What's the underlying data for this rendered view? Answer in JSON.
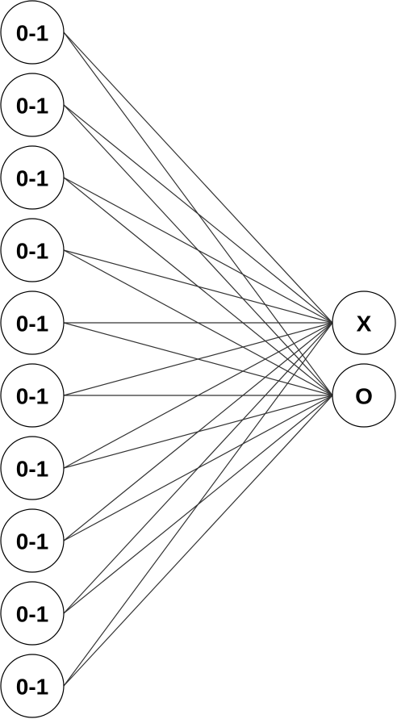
{
  "diagram": {
    "type": "neural-network",
    "input_nodes": [
      {
        "label": "0-1"
      },
      {
        "label": "0-1"
      },
      {
        "label": "0-1"
      },
      {
        "label": "0-1"
      },
      {
        "label": "0-1"
      },
      {
        "label": "0-1"
      },
      {
        "label": "0-1"
      },
      {
        "label": "0-1"
      },
      {
        "label": "0-1"
      },
      {
        "label": "0-1"
      }
    ],
    "output_nodes": [
      {
        "label": "X"
      },
      {
        "label": "O"
      }
    ],
    "connections": "fully-connected",
    "colors": {
      "edge": "#333333",
      "node_stroke": "#000000",
      "node_fill": "#ffffff",
      "text": "#000000"
    }
  }
}
